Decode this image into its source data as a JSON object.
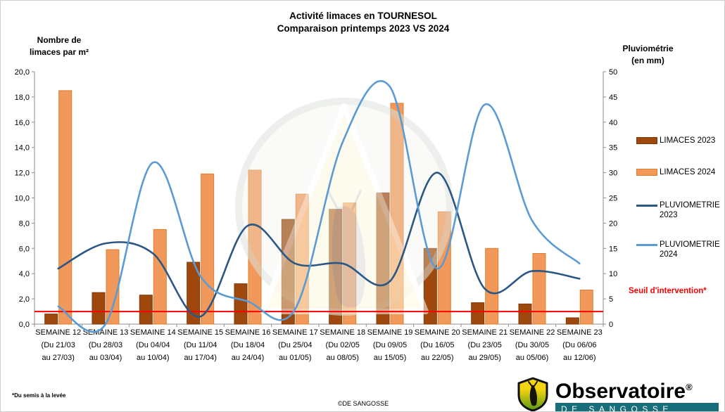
{
  "title": {
    "line1": "Activité limaces en TOURNESOL",
    "line2": "Comparaison printemps 2023 VS 2024"
  },
  "threshold": {
    "label": "Seuil d'intervention*",
    "value": 1.0,
    "color": "#FF0000"
  },
  "footer": {
    "footnote": "*Du semis à la levée",
    "copyright": "©DE SANGOSSE"
  },
  "logo": {
    "name": "Observatoire",
    "registered": "®",
    "subtitle": "DE SANGOSSE",
    "band_color": "#176E7A"
  },
  "colors": {
    "bar_2023_fill": "#9E480E",
    "bar_2023_stroke": "#7F3A0B",
    "bar_2024_fill": "#F0995A",
    "bar_2024_stroke": "#DF7F2B",
    "line_2023": "#2B5784",
    "line_2024": "#5B9BD5",
    "axis": "#8E8E8E",
    "threshold": "#FF0000"
  },
  "chart_data": {
    "type": "combo",
    "left_axis": {
      "title_line1": "Nombre de",
      "title_line2": "limaces par m²",
      "min": 0,
      "max": 20,
      "step": 2,
      "decimal_comma": true
    },
    "right_axis": {
      "title_line1": "Pluviométrie",
      "title_line2": "(en mm)",
      "min": 0,
      "max": 50,
      "step": 5
    },
    "grid": false,
    "legend_position": "right",
    "categories": [
      {
        "week": "SEMAINE 12",
        "from": "(Du 21/03",
        "to": "au 27/03)"
      },
      {
        "week": "SEMAINE 13",
        "from": "(Du 28/03",
        "to": "au 03/04)"
      },
      {
        "week": "SEMAINE 14",
        "from": "(Du 04/04",
        "to": "au 10/04)"
      },
      {
        "week": "SEMAINE 15",
        "from": "(Du 11/04",
        "to": "au 17/04)"
      },
      {
        "week": "SEMAINE 16",
        "from": "(Du 18/04",
        "to": "au 24/04)"
      },
      {
        "week": "SEMAINE 17",
        "from": "(Du 25/04",
        "to": "au 01/05)"
      },
      {
        "week": "SEMAINE 18",
        "from": "(Du 02/05",
        "to": "au 08/05)"
      },
      {
        "week": "SEMAINE 19",
        "from": "(Du 09/05",
        "to": "au 15/05)"
      },
      {
        "week": "SEMAINE 20",
        "from": "(Du 16/05",
        "to": "au 22/05)"
      },
      {
        "week": "SEMAINE 21",
        "from": "(Du 23/05",
        "to": "au 29/05)"
      },
      {
        "week": "SEMAINE 22",
        "from": "(Du 30/05",
        "to": "au 05/06)"
      },
      {
        "week": "SEMAINE 23",
        "from": "(Du 06/06",
        "to": "au 12/06)"
      }
    ],
    "series": [
      {
        "name": "LIMACES 2023",
        "type": "bar",
        "axis": "left",
        "values": [
          0.8,
          2.5,
          2.3,
          4.9,
          3.2,
          8.3,
          9.1,
          10.4,
          6.0,
          1.7,
          1.6,
          0.5
        ]
      },
      {
        "name": "LIMACES 2024",
        "type": "bar",
        "axis": "left",
        "values": [
          18.5,
          5.9,
          7.5,
          11.9,
          12.2,
          10.3,
          9.6,
          17.5,
          8.9,
          6.0,
          5.6,
          2.7
        ]
      },
      {
        "name": "PLUVIOMETRIE 2023",
        "type": "line",
        "axis": "right",
        "values": [
          11,
          16,
          14,
          1.5,
          19.5,
          12,
          12,
          8.5,
          30,
          7,
          10.5,
          9
        ]
      },
      {
        "name": "PLUVIOMETRIE 2024",
        "type": "line",
        "axis": "right",
        "values": [
          3.5,
          0,
          32,
          9.5,
          4.5,
          3,
          36,
          47,
          11,
          43.5,
          20.5,
          12
        ]
      }
    ]
  }
}
